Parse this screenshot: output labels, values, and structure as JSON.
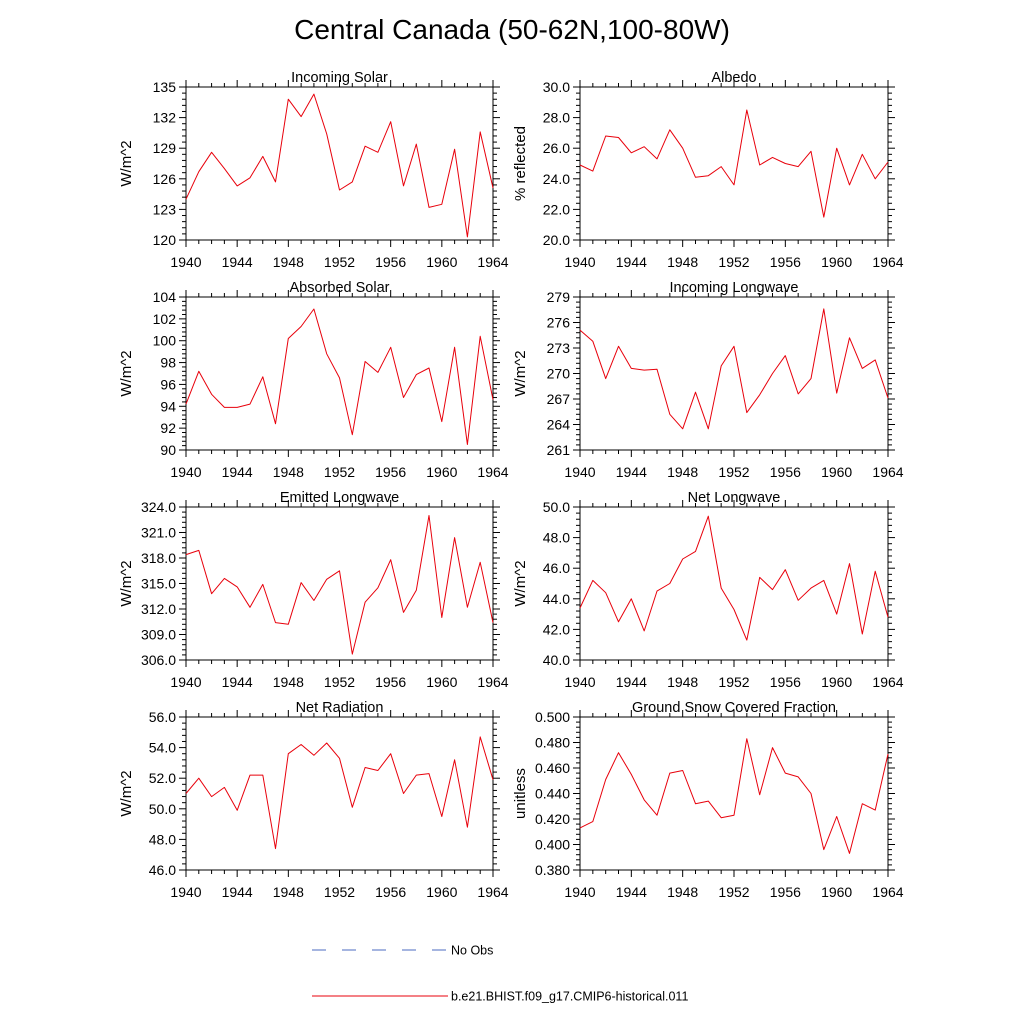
{
  "figure_title": "Central Canada (50-62N,100-80W)",
  "colors": {
    "model_line": "#e8000b",
    "obs_line": "#4b6bc2",
    "axis": "#000000"
  },
  "legend": {
    "entries": [
      {
        "label": "No Obs",
        "style": "dashed",
        "color": "#4b6bc2"
      },
      {
        "label": "b.e21.BHIST.f09_g17.CMIP6-historical.011",
        "style": "solid",
        "color": "#e8000b"
      }
    ]
  },
  "chart_data": [
    {
      "type": "line",
      "title": "Incoming Solar",
      "ylabel": "W/m^2",
      "xlim": [
        1940,
        1964
      ],
      "ylim": [
        120,
        135
      ],
      "xticks": [
        1940,
        1944,
        1948,
        1952,
        1956,
        1960,
        1964
      ],
      "xtick_labels": [
        "1940",
        "1944",
        "1948",
        "1952",
        "1956",
        "1960",
        "1964"
      ],
      "yticks": [
        120,
        123,
        126,
        129,
        132,
        135
      ],
      "ytick_labels": [
        "120",
        "123",
        "126",
        "129",
        "132",
        "135"
      ],
      "x": [
        1940,
        1941,
        1942,
        1943,
        1944,
        1945,
        1946,
        1947,
        1948,
        1949,
        1950,
        1951,
        1952,
        1953,
        1954,
        1955,
        1956,
        1957,
        1958,
        1959,
        1960,
        1961,
        1962,
        1963,
        1964
      ],
      "series": [
        {
          "name": "b.e21.BHIST.f09_g17.CMIP6-historical.011",
          "values": [
            124.0,
            126.7,
            128.6,
            127.0,
            125.3,
            126.1,
            128.2,
            125.7,
            133.8,
            132.1,
            134.3,
            130.4,
            124.9,
            125.7,
            129.2,
            128.6,
            131.6,
            125.3,
            129.4,
            123.2,
            123.5,
            128.9,
            120.3,
            130.6,
            125.1
          ]
        }
      ]
    },
    {
      "type": "line",
      "title": "Albedo",
      "ylabel": "% reflected",
      "xlim": [
        1940,
        1964
      ],
      "ylim": [
        20,
        30
      ],
      "xticks": [
        1940,
        1944,
        1948,
        1952,
        1956,
        1960,
        1964
      ],
      "xtick_labels": [
        "1940",
        "1944",
        "1948",
        "1952",
        "1956",
        "1960",
        "1964"
      ],
      "yticks": [
        20,
        22,
        24,
        26,
        28,
        30
      ],
      "ytick_labels": [
        "20.0",
        "22.0",
        "24.0",
        "26.0",
        "28.0",
        "30.0"
      ],
      "x": [
        1940,
        1941,
        1942,
        1943,
        1944,
        1945,
        1946,
        1947,
        1948,
        1949,
        1950,
        1951,
        1952,
        1953,
        1954,
        1955,
        1956,
        1957,
        1958,
        1959,
        1960,
        1961,
        1962,
        1963,
        1964
      ],
      "series": [
        {
          "name": "b.e21.BHIST.f09_g17.CMIP6-historical.011",
          "values": [
            24.9,
            24.5,
            26.8,
            26.7,
            25.7,
            26.1,
            25.3,
            27.2,
            26.0,
            24.1,
            24.2,
            24.8,
            23.6,
            28.5,
            24.9,
            25.4,
            25.0,
            24.8,
            25.8,
            21.5,
            26.0,
            23.6,
            25.6,
            24.0,
            25.1
          ]
        }
      ]
    },
    {
      "type": "line",
      "title": "Absorbed Solar",
      "ylabel": "W/m^2",
      "xlim": [
        1940,
        1964
      ],
      "ylim": [
        90,
        104
      ],
      "xticks": [
        1940,
        1944,
        1948,
        1952,
        1956,
        1960,
        1964
      ],
      "xtick_labels": [
        "1940",
        "1944",
        "1948",
        "1952",
        "1956",
        "1960",
        "1964"
      ],
      "yticks": [
        90,
        92,
        94,
        96,
        98,
        100,
        102,
        104
      ],
      "ytick_labels": [
        "90",
        "92",
        "94",
        "96",
        "98",
        "100",
        "102",
        "104"
      ],
      "x": [
        1940,
        1941,
        1942,
        1943,
        1944,
        1945,
        1946,
        1947,
        1948,
        1949,
        1950,
        1951,
        1952,
        1953,
        1954,
        1955,
        1956,
        1957,
        1958,
        1959,
        1960,
        1961,
        1962,
        1963,
        1964
      ],
      "series": [
        {
          "name": "b.e21.BHIST.f09_g17.CMIP6-historical.011",
          "values": [
            94.2,
            97.2,
            95.1,
            93.9,
            93.9,
            94.2,
            96.7,
            92.4,
            100.2,
            101.3,
            102.9,
            98.8,
            96.6,
            91.4,
            98.1,
            97.1,
            99.4,
            94.8,
            96.9,
            97.5,
            92.6,
            99.4,
            90.5,
            100.4,
            94.6
          ]
        }
      ]
    },
    {
      "type": "line",
      "title": "Incoming Longwave",
      "ylabel": "W/m^2",
      "xlim": [
        1940,
        1964
      ],
      "ylim": [
        261,
        279
      ],
      "xticks": [
        1940,
        1944,
        1948,
        1952,
        1956,
        1960,
        1964
      ],
      "xtick_labels": [
        "1940",
        "1944",
        "1948",
        "1952",
        "1956",
        "1960",
        "1964"
      ],
      "yticks": [
        261,
        264,
        267,
        270,
        273,
        276,
        279
      ],
      "ytick_labels": [
        "261",
        "264",
        "267",
        "270",
        "273",
        "276",
        "279"
      ],
      "x": [
        1940,
        1941,
        1942,
        1943,
        1944,
        1945,
        1946,
        1947,
        1948,
        1949,
        1950,
        1951,
        1952,
        1953,
        1954,
        1955,
        1956,
        1957,
        1958,
        1959,
        1960,
        1961,
        1962,
        1963,
        1964
      ],
      "series": [
        {
          "name": "b.e21.BHIST.f09_g17.CMIP6-historical.011",
          "values": [
            275.1,
            273.8,
            269.4,
            273.2,
            270.6,
            270.4,
            270.5,
            265.2,
            263.5,
            267.8,
            263.5,
            270.9,
            273.2,
            265.4,
            267.5,
            270.0,
            272.1,
            267.6,
            269.4,
            277.6,
            267.7,
            274.2,
            270.6,
            271.6,
            267.1
          ]
        }
      ]
    },
    {
      "type": "line",
      "title": "Emitted Longwave",
      "ylabel": "W/m^2",
      "xlim": [
        1940,
        1964
      ],
      "ylim": [
        306,
        324
      ],
      "xticks": [
        1940,
        1944,
        1948,
        1952,
        1956,
        1960,
        1964
      ],
      "xtick_labels": [
        "1940",
        "1944",
        "1948",
        "1952",
        "1956",
        "1960",
        "1964"
      ],
      "yticks": [
        306,
        309,
        312,
        315,
        318,
        321,
        324
      ],
      "ytick_labels": [
        "306.0",
        "309.0",
        "312.0",
        "315.0",
        "318.0",
        "321.0",
        "324.0"
      ],
      "x": [
        1940,
        1941,
        1942,
        1943,
        1944,
        1945,
        1946,
        1947,
        1948,
        1949,
        1950,
        1951,
        1952,
        1953,
        1954,
        1955,
        1956,
        1957,
        1958,
        1959,
        1960,
        1961,
        1962,
        1963,
        1964
      ],
      "series": [
        {
          "name": "b.e21.BHIST.f09_g17.CMIP6-historical.011",
          "values": [
            318.4,
            318.9,
            313.8,
            315.6,
            314.6,
            312.2,
            314.9,
            310.4,
            310.2,
            315.1,
            313.0,
            315.5,
            316.5,
            306.7,
            312.8,
            314.5,
            317.8,
            311.6,
            314.2,
            323.0,
            311.0,
            320.4,
            312.2,
            317.5,
            310.4
          ]
        }
      ]
    },
    {
      "type": "line",
      "title": "Net Longwave",
      "ylabel": "W/m^2",
      "xlim": [
        1940,
        1964
      ],
      "ylim": [
        40,
        50
      ],
      "xticks": [
        1940,
        1944,
        1948,
        1952,
        1956,
        1960,
        1964
      ],
      "xtick_labels": [
        "1940",
        "1944",
        "1948",
        "1952",
        "1956",
        "1960",
        "1964"
      ],
      "yticks": [
        40,
        42,
        44,
        46,
        48,
        50
      ],
      "ytick_labels": [
        "40.0",
        "42.0",
        "44.0",
        "46.0",
        "48.0",
        "50.0"
      ],
      "x": [
        1940,
        1941,
        1942,
        1943,
        1944,
        1945,
        1946,
        1947,
        1948,
        1949,
        1950,
        1951,
        1952,
        1953,
        1954,
        1955,
        1956,
        1957,
        1958,
        1959,
        1960,
        1961,
        1962,
        1963,
        1964
      ],
      "series": [
        {
          "name": "b.e21.BHIST.f09_g17.CMIP6-historical.011",
          "values": [
            43.4,
            45.2,
            44.4,
            42.5,
            44.0,
            41.9,
            44.5,
            45.0,
            46.6,
            47.1,
            49.4,
            44.7,
            43.3,
            41.3,
            45.4,
            44.6,
            45.9,
            43.9,
            44.7,
            45.2,
            43.0,
            46.3,
            41.7,
            45.8,
            42.8
          ]
        }
      ]
    },
    {
      "type": "line",
      "title": "Net Radiation",
      "ylabel": "W/m^2",
      "xlim": [
        1940,
        1964
      ],
      "ylim": [
        46,
        56
      ],
      "xticks": [
        1940,
        1944,
        1948,
        1952,
        1956,
        1960,
        1964
      ],
      "xtick_labels": [
        "1940",
        "1944",
        "1948",
        "1952",
        "1956",
        "1960",
        "1964"
      ],
      "yticks": [
        46,
        48,
        50,
        52,
        54,
        56
      ],
      "ytick_labels": [
        "46.0",
        "48.0",
        "50.0",
        "52.0",
        "54.0",
        "56.0"
      ],
      "x": [
        1940,
        1941,
        1942,
        1943,
        1944,
        1945,
        1946,
        1947,
        1948,
        1949,
        1950,
        1951,
        1952,
        1953,
        1954,
        1955,
        1956,
        1957,
        1958,
        1959,
        1960,
        1961,
        1962,
        1963,
        1964
      ],
      "series": [
        {
          "name": "b.e21.BHIST.f09_g17.CMIP6-historical.011",
          "values": [
            51.0,
            52.0,
            50.8,
            51.4,
            49.9,
            52.2,
            52.2,
            47.4,
            53.6,
            54.2,
            53.5,
            54.3,
            53.3,
            50.1,
            52.7,
            52.5,
            53.6,
            51.0,
            52.2,
            52.3,
            49.5,
            53.2,
            48.8,
            54.7,
            51.9
          ]
        }
      ]
    },
    {
      "type": "line",
      "title": "Ground Snow Covered Fraction",
      "ylabel": "unitless",
      "xlim": [
        1940,
        1964
      ],
      "ylim": [
        0.38,
        0.5
      ],
      "xticks": [
        1940,
        1944,
        1948,
        1952,
        1956,
        1960,
        1964
      ],
      "xtick_labels": [
        "1940",
        "1944",
        "1948",
        "1952",
        "1956",
        "1960",
        "1964"
      ],
      "yticks": [
        0.38,
        0.4,
        0.42,
        0.44,
        0.46,
        0.48,
        0.5
      ],
      "ytick_labels": [
        "0.380",
        "0.400",
        "0.420",
        "0.440",
        "0.460",
        "0.480",
        "0.500"
      ],
      "x": [
        1940,
        1941,
        1942,
        1943,
        1944,
        1945,
        1946,
        1947,
        1948,
        1949,
        1950,
        1951,
        1952,
        1953,
        1954,
        1955,
        1956,
        1957,
        1958,
        1959,
        1960,
        1961,
        1962,
        1963,
        1964
      ],
      "series": [
        {
          "name": "b.e21.BHIST.f09_g17.CMIP6-historical.011",
          "values": [
            0.413,
            0.418,
            0.451,
            0.472,
            0.455,
            0.435,
            0.423,
            0.456,
            0.458,
            0.432,
            0.434,
            0.421,
            0.423,
            0.483,
            0.439,
            0.476,
            0.456,
            0.453,
            0.44,
            0.396,
            0.422,
            0.393,
            0.432,
            0.427,
            0.471
          ]
        }
      ]
    }
  ]
}
